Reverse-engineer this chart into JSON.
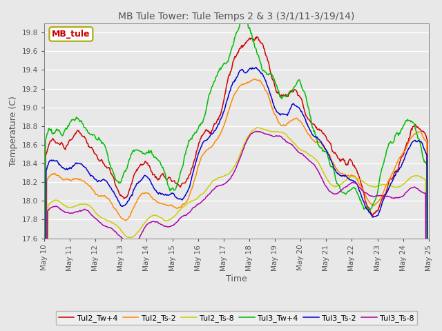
{
  "title": "MB Tule Tower: Tule Temps 2 & 3 (3/1/11-3/19/14)",
  "xlabel": "Time",
  "ylabel": "Temperature (C)",
  "ylim": [
    17.6,
    19.9
  ],
  "yticks": [
    17.6,
    17.8,
    18.0,
    18.2,
    18.4,
    18.6,
    18.8,
    19.0,
    19.2,
    19.4,
    19.6,
    19.8
  ],
  "legend_label": "MB_tule",
  "series_colors": {
    "Tul2_Tw+4": "#cc0000",
    "Tul2_Ts-2": "#ff8800",
    "Tul2_Ts-8": "#cccc00",
    "Tul3_Tw+4": "#00bb00",
    "Tul3_Ts-2": "#0000cc",
    "Tul3_Ts-8": "#aa00aa"
  },
  "xtick_labels": [
    "May 10",
    "May 11",
    "May 12",
    "May 13",
    "May 14",
    "May 15",
    "May 16",
    "May 17",
    "May 18",
    "May 19",
    "May 20",
    "May 21",
    "May 22",
    "May 23",
    "May 24",
    "May 25"
  ],
  "background_color": "#e8e8e8",
  "grid_color": "#ffffff",
  "title_color": "#555555",
  "axis_color": "#555555",
  "tick_color": "#555555",
  "figsize": [
    6.4,
    4.8
  ],
  "dpi": 100
}
